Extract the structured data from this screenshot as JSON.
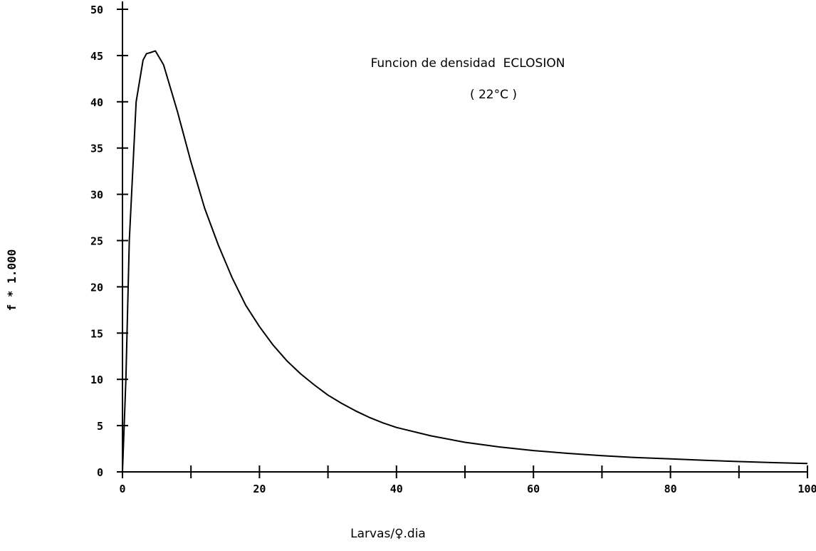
{
  "chart_data": {
    "type": "line",
    "title": "Funcion de densidad  ECLOSION",
    "subtitle": "( 22°C )",
    "xlabel": "Larvas/♀.dia",
    "ylabel": "f * 1.000",
    "xlim": [
      0,
      100
    ],
    "ylim": [
      0,
      50
    ],
    "xticks": [
      0,
      10,
      20,
      30,
      40,
      50,
      60,
      70,
      80,
      90,
      100
    ],
    "xtick_labels": [
      "0",
      "20",
      "40",
      "60",
      "80",
      "100"
    ],
    "xtick_label_values": [
      0,
      20,
      40,
      60,
      80,
      100
    ],
    "yticks": [
      0,
      5,
      10,
      15,
      20,
      25,
      30,
      35,
      40,
      45,
      50
    ],
    "ytick_labels": [
      "0",
      "5",
      "10",
      "15",
      "20",
      "25",
      "30",
      "35",
      "40",
      "45",
      "50"
    ],
    "grid": false,
    "series": [
      {
        "x": [
          0,
          0.5,
          1,
          2,
          3,
          3.5,
          4,
          4.8,
          6,
          8,
          10,
          12,
          14,
          16,
          18,
          20,
          22,
          24,
          26,
          28,
          30,
          32,
          34,
          36,
          38,
          40,
          45,
          50,
          55,
          60,
          65,
          70,
          75,
          80,
          85,
          90,
          95,
          100
        ],
        "y": [
          0,
          10,
          25,
          40,
          44.5,
          45.2,
          45.3,
          45.5,
          44,
          39,
          33.5,
          28.5,
          24.5,
          21,
          18,
          15.7,
          13.7,
          12,
          10.6,
          9.4,
          8.3,
          7.4,
          6.6,
          5.9,
          5.3,
          4.8,
          3.9,
          3.2,
          2.7,
          2.3,
          2.0,
          1.75,
          1.55,
          1.4,
          1.25,
          1.12,
          1.0,
          0.9
        ]
      }
    ]
  }
}
